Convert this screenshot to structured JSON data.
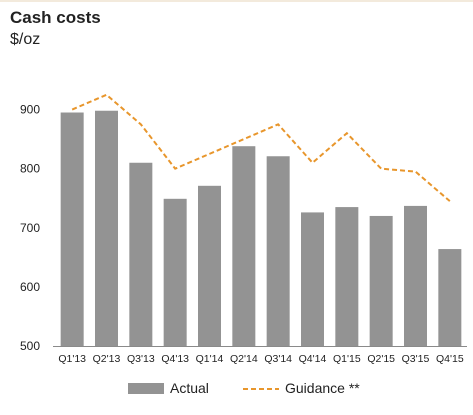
{
  "chart_data": {
    "type": "bar",
    "title": "Cash costs",
    "ylabel": "$/oz",
    "ylim": [
      500,
      950
    ],
    "yticks": [
      500,
      600,
      700,
      800,
      900
    ],
    "categories": [
      "Q1'13",
      "Q2'13",
      "Q3'13",
      "Q4'13",
      "Q1'14",
      "Q2'14",
      "Q3'14",
      "Q4'14",
      "Q1'15",
      "Q2'15",
      "Q3'15",
      "Q4'15"
    ],
    "series": [
      {
        "name": "Actual",
        "kind": "bar",
        "color": "#939393",
        "values": [
          895,
          898,
          810,
          749,
          771,
          838,
          821,
          726,
          735,
          720,
          737,
          664
        ]
      },
      {
        "name": "Guidance **",
        "kind": "line",
        "style": "dashed",
        "color": "#e8962c",
        "values": [
          900,
          925,
          875,
          800,
          825,
          850,
          875,
          810,
          860,
          800,
          795,
          745
        ]
      }
    ],
    "grid": false,
    "legend_position": "bottom"
  }
}
